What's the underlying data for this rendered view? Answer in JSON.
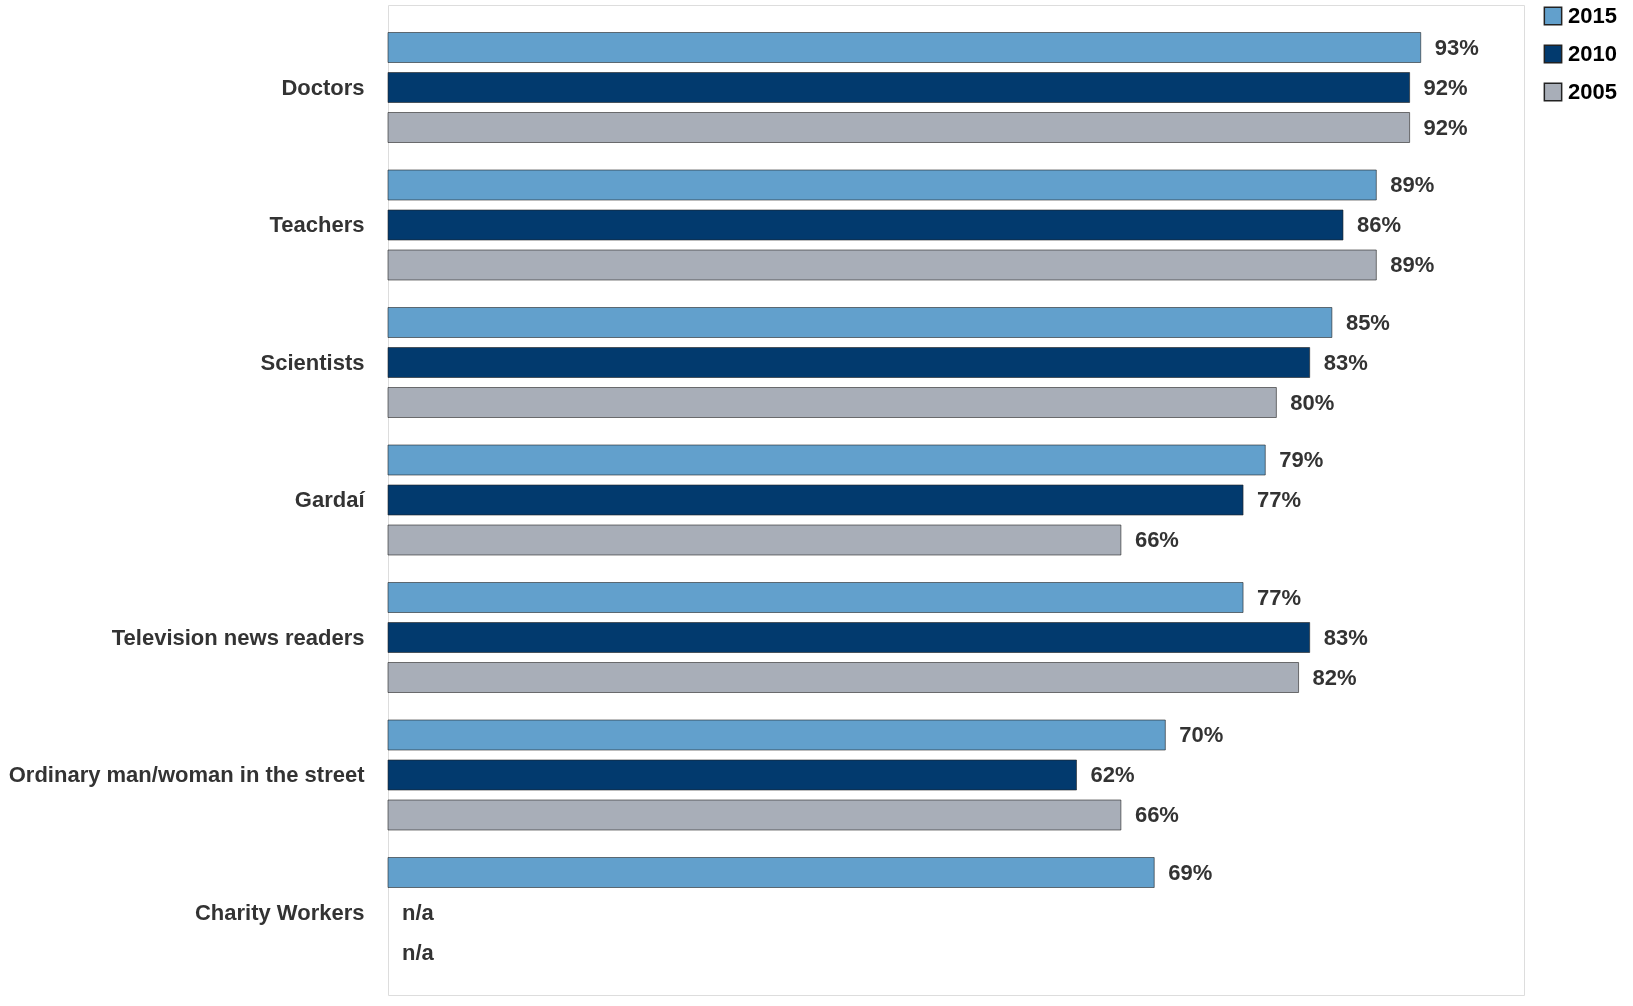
{
  "chart_data": {
    "type": "bar",
    "orientation": "horizontal",
    "legend": "right",
    "categories": [
      "Doctors",
      "Teachers",
      "Scientists",
      "Gardaí",
      "Television news readers",
      "Ordinary man/woman in the street",
      "Charity Workers"
    ],
    "series": [
      {
        "name": "2015",
        "color": "#62a0cc",
        "values": [
          93,
          89,
          85,
          79,
          77,
          70,
          69
        ],
        "value_labels": [
          "93%",
          "89%",
          "85%",
          "79%",
          "77%",
          "70%",
          "69%"
        ]
      },
      {
        "name": "2010",
        "color": "#023a6e",
        "values": [
          92,
          86,
          83,
          77,
          83,
          62,
          null
        ],
        "value_labels": [
          "92%",
          "86%",
          "83%",
          "77%",
          "83%",
          "62%",
          "n/a"
        ]
      },
      {
        "name": "2005",
        "color": "#a8aeb8",
        "values": [
          92,
          89,
          80,
          66,
          82,
          66,
          null
        ],
        "value_labels": [
          "92%",
          "89%",
          "80%",
          "66%",
          "82%",
          "66%",
          "n/a"
        ]
      }
    ]
  }
}
